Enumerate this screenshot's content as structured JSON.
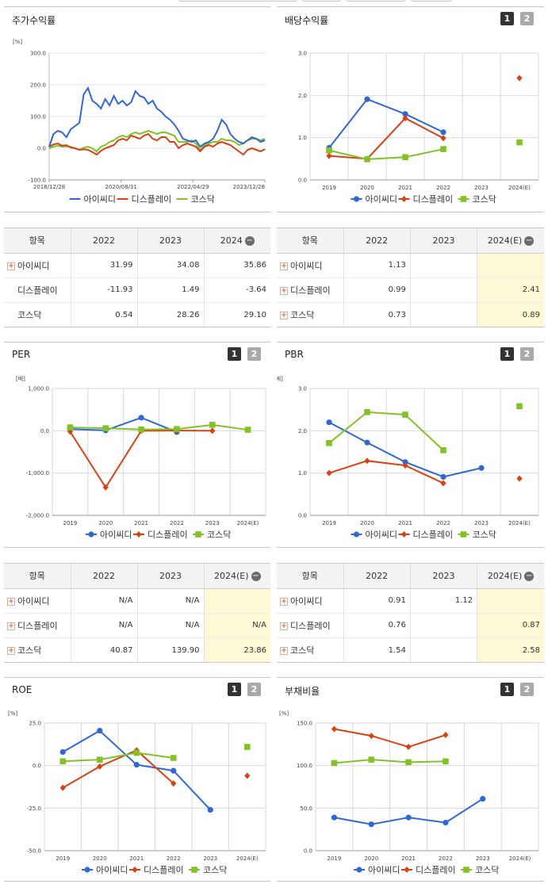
{
  "colors": {
    "a": "#2f68d5",
    "d": "#d84114",
    "k": "#83c227"
  },
  "legend": [
    "아이씨디",
    "디스플레이",
    "코스닥"
  ],
  "toggles": [
    "1",
    "2"
  ],
  "panels": {
    "stock": {
      "title": "주가수익률",
      "chart_data": {
        "type": "line",
        "ylabel": "[%]",
        "ylim": [
          -100,
          300
        ],
        "yticks": [
          "300.0",
          "200.0",
          "100.0",
          "0.0",
          "-100.0"
        ],
        "xticks": [
          "2018/12/28",
          "2020/08/31",
          "2022/04/29",
          "2023/12/28"
        ],
        "x": [
          0,
          0.02,
          0.04,
          0.06,
          0.08,
          0.1,
          0.12,
          0.14,
          0.16,
          0.18,
          0.2,
          0.22,
          0.24,
          0.26,
          0.28,
          0.3,
          0.32,
          0.34,
          0.36,
          0.38,
          0.4,
          0.42,
          0.44,
          0.46,
          0.48,
          0.5,
          0.52,
          0.54,
          0.56,
          0.58,
          0.6,
          0.62,
          0.64,
          0.66,
          0.68,
          0.7,
          0.72,
          0.74,
          0.76,
          0.78,
          0.8,
          0.82,
          0.84,
          0.86,
          0.88,
          0.9,
          0.92,
          0.94,
          0.96,
          0.98,
          1
        ],
        "series": [
          {
            "name": "아이씨디",
            "values": [
              5,
              45,
              55,
              50,
              35,
              60,
              70,
              80,
              170,
              190,
              150,
              140,
              125,
              155,
              135,
              165,
              140,
              150,
              135,
              145,
              180,
              165,
              160,
              140,
              150,
              125,
              115,
              100,
              90,
              75,
              55,
              30,
              25,
              20,
              25,
              5,
              15,
              20,
              30,
              55,
              90,
              75,
              45,
              30,
              20,
              15,
              25,
              35,
              30,
              20,
              25
            ]
          },
          {
            "name": "디스플레이",
            "values": [
              5,
              12,
              15,
              8,
              10,
              2,
              0,
              -5,
              -3,
              -5,
              -12,
              -20,
              -8,
              0,
              5,
              10,
              25,
              30,
              25,
              40,
              35,
              30,
              40,
              45,
              30,
              25,
              35,
              35,
              20,
              20,
              0,
              10,
              15,
              10,
              5,
              -10,
              5,
              10,
              5,
              15,
              20,
              15,
              10,
              0,
              -10,
              -20,
              -5,
              0,
              -5,
              -10,
              -3
            ]
          },
          {
            "name": "코스닥",
            "values": [
              0,
              5,
              8,
              5,
              6,
              5,
              0,
              -5,
              2,
              5,
              0,
              -10,
              5,
              10,
              20,
              25,
              35,
              40,
              35,
              45,
              50,
              45,
              50,
              55,
              50,
              45,
              50,
              50,
              45,
              40,
              20,
              20,
              20,
              25,
              15,
              -5,
              10,
              15,
              20,
              20,
              30,
              25,
              25,
              20,
              10,
              15,
              25,
              30,
              30,
              25,
              30
            ]
          }
        ]
      },
      "table": {
        "head": [
          "항목",
          "2022",
          "2023",
          "2024"
        ],
        "rows": [
          {
            "label": "아이씨디",
            "vals": [
              "31.99",
              "34.08",
              "35.86"
            ]
          },
          {
            "label": "디스플레이",
            "vals": [
              "-11.93",
              "1.49",
              "-3.64"
            ]
          },
          {
            "label": "코스닥",
            "vals": [
              "0.54",
              "28.26",
              "29.10"
            ]
          }
        ]
      }
    },
    "div": {
      "title": "배당수익률",
      "chart_data": {
        "type": "line",
        "ylabel": "",
        "ylim": [
          0,
          3
        ],
        "yticks": [
          "3.0",
          "2.0",
          "1.0",
          "0.0"
        ],
        "categories": [
          "2019",
          "2020",
          "2021",
          "2022",
          "2023",
          "2024(E)"
        ],
        "series": [
          {
            "name": "아이씨디",
            "values": [
              0.76,
              1.91,
              1.56,
              1.13,
              null,
              null
            ]
          },
          {
            "name": "디스플레이",
            "values": [
              0.57,
              0.5,
              1.46,
              0.99,
              null,
              2.41
            ]
          },
          {
            "name": "코스닥",
            "values": [
              0.7,
              0.49,
              0.54,
              0.73,
              null,
              0.89
            ]
          }
        ]
      },
      "table": {
        "head": [
          "항목",
          "2022",
          "2023",
          "2024(E)"
        ],
        "rows": [
          {
            "label": "아이씨디",
            "vals": [
              "1.13",
              "",
              ""
            ]
          },
          {
            "label": "디스플레이",
            "vals": [
              "0.99",
              "",
              "2.41"
            ]
          },
          {
            "label": "코스닥",
            "vals": [
              "0.73",
              "",
              "0.89"
            ]
          }
        ]
      }
    },
    "per": {
      "title": "PER",
      "chart_data": {
        "type": "line",
        "ylabel": "[배]",
        "ylim": [
          -2000,
          1000
        ],
        "yticks": [
          "1,000.0",
          "0.0",
          "-1,000.0",
          "-2,000.0"
        ],
        "categories": [
          "2019",
          "2020",
          "2021",
          "2022",
          "2023",
          "2024(E)"
        ],
        "series": [
          {
            "name": "아이씨디",
            "values": [
              40,
              10,
              310,
              -30,
              null,
              null
            ]
          },
          {
            "name": "디스플레이",
            "values": [
              -20,
              -1340,
              0,
              5,
              0,
              null
            ]
          },
          {
            "name": "코스닥",
            "values": [
              80,
              60,
              30,
              40,
              140,
              24
            ]
          }
        ]
      },
      "table": {
        "head": [
          "항목",
          "2022",
          "2023",
          "2024(E)"
        ],
        "rows": [
          {
            "label": "아이씨디",
            "vals": [
              "N/A",
              "N/A",
              ""
            ]
          },
          {
            "label": "디스플레이",
            "vals": [
              "N/A",
              "N/A",
              "N/A"
            ]
          },
          {
            "label": "코스닥",
            "vals": [
              "40.87",
              "139.90",
              "23.86"
            ]
          }
        ]
      }
    },
    "pbr": {
      "title": "PBR",
      "chart_data": {
        "type": "line",
        "ylabel": "[배]",
        "ylim": [
          0,
          3
        ],
        "yticks": [
          "3.0",
          "2.0",
          "1.0",
          "0.0"
        ],
        "categories": [
          "2019",
          "2020",
          "2021",
          "2022",
          "2023",
          "2024(E)"
        ],
        "series": [
          {
            "name": "아이씨디",
            "values": [
              2.2,
              1.72,
              1.26,
              0.91,
              1.12,
              null
            ]
          },
          {
            "name": "디스플레이",
            "values": [
              1.0,
              1.29,
              1.18,
              0.76,
              null,
              0.87
            ]
          },
          {
            "name": "코스닥",
            "values": [
              1.71,
              2.44,
              2.38,
              1.54,
              null,
              2.58
            ]
          }
        ]
      },
      "table": {
        "head": [
          "항목",
          "2022",
          "2023",
          "2024(E)"
        ],
        "rows": [
          {
            "label": "아이씨디",
            "vals": [
              "0.91",
              "1.12",
              ""
            ]
          },
          {
            "label": "디스플레이",
            "vals": [
              "0.76",
              "",
              "0.87"
            ]
          },
          {
            "label": "코스닥",
            "vals": [
              "1.54",
              "",
              "2.58"
            ]
          }
        ]
      }
    },
    "roe": {
      "title": "ROE",
      "chart_data": {
        "type": "line",
        "ylabel": "[%]",
        "ylim": [
          -50,
          25
        ],
        "yticks": [
          "25.0",
          "0.0",
          "-25.0",
          "-50.0"
        ],
        "categories": [
          "2019",
          "2020",
          "2021",
          "2022",
          "2023",
          "2024(E)"
        ],
        "series": [
          {
            "name": "아이씨디",
            "values": [
              8,
              20.5,
              0.5,
              -3,
              -26,
              null
            ]
          },
          {
            "name": "디스플레이",
            "values": [
              -13,
              -0.5,
              9,
              -10.5,
              null,
              -6
            ]
          },
          {
            "name": "코스닥",
            "values": [
              2.5,
              3.5,
              7.5,
              4.5,
              null,
              11
            ]
          }
        ]
      }
    },
    "debt": {
      "title": "부채비율",
      "chart_data": {
        "type": "line",
        "ylabel": "[%]",
        "ylim": [
          0,
          150
        ],
        "yticks": [
          "150.0",
          "100.0",
          "50.0",
          "0.0"
        ],
        "categories": [
          "2019",
          "2020",
          "2021",
          "2022",
          "2023",
          "2024(E)"
        ],
        "series": [
          {
            "name": "아이씨디",
            "values": [
              39,
              31,
              39,
              33,
              61,
              null
            ]
          },
          {
            "name": "디스플레이",
            "values": [
              143,
              135,
              122,
              136,
              null,
              null
            ]
          },
          {
            "name": "코스닥",
            "values": [
              103,
              107,
              104,
              105,
              null,
              null
            ]
          }
        ]
      }
    }
  }
}
